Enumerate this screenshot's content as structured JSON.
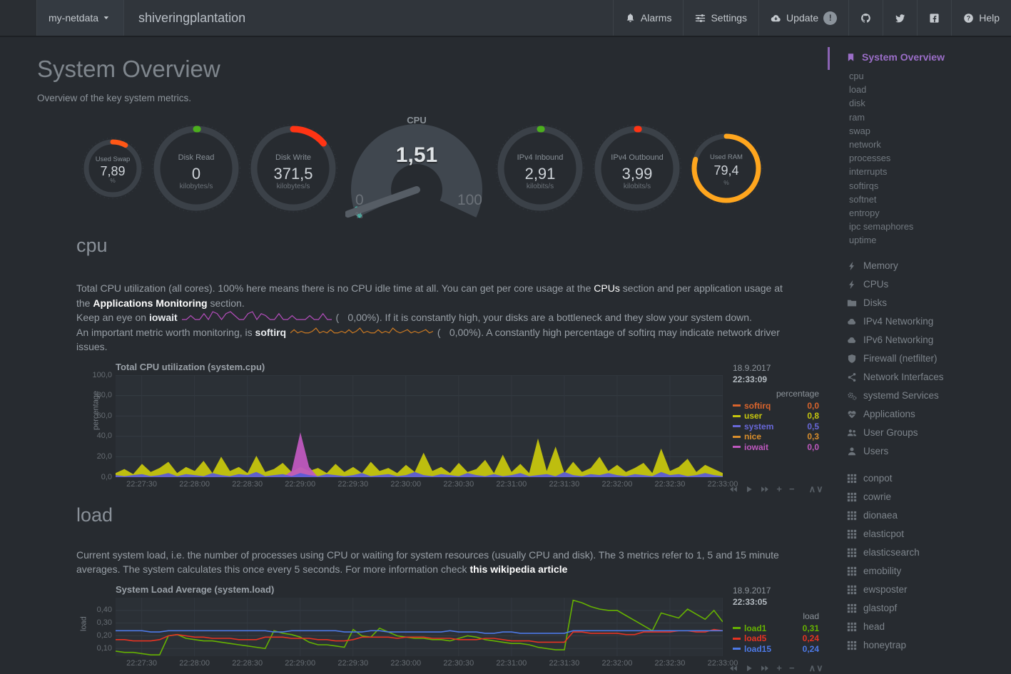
{
  "navbar": {
    "menu_label": "my-netdata",
    "hostname": "shiveringplantation",
    "buttons": [
      {
        "label": "Alarms",
        "icon": "bell-icon"
      },
      {
        "label": "Settings",
        "icon": "sliders-icon"
      },
      {
        "label": "Update",
        "icon": "cloud-download-icon",
        "badge": "!"
      },
      {
        "label": "",
        "icon": "github-icon"
      },
      {
        "label": "",
        "icon": "twitter-icon"
      },
      {
        "label": "",
        "icon": "facebook-icon"
      },
      {
        "label": "Help",
        "icon": "question-icon"
      }
    ]
  },
  "header": {
    "title": "System Overview",
    "subtitle": "Overview of the key system metrics."
  },
  "gauges": [
    {
      "type": "circle",
      "name": "used-swap",
      "label": "Used Swap",
      "value": "7,89",
      "unit": "%",
      "arc_pct": 8,
      "color": "#ff5716",
      "size": 88
    },
    {
      "type": "circle",
      "name": "disk-read",
      "label": "Disk Read",
      "value": "0",
      "unit": "kilobytes/s",
      "arc_pct": 0.1,
      "color": "#4caf1e",
      "size": 126
    },
    {
      "type": "circle",
      "name": "disk-write",
      "label": "Disk Write",
      "value": "371,5",
      "unit": "kilobytes/s",
      "arc_pct": 14,
      "color": "#ff3414",
      "size": 126
    },
    {
      "type": "gauge",
      "name": "cpu",
      "label": "CPU",
      "value": "1,51",
      "unit": "%",
      "min": "0",
      "max": "100",
      "pct": 1.51,
      "color": "#3fc8b4"
    },
    {
      "type": "circle",
      "name": "ipv4-inbound",
      "label": "IPv4 Inbound",
      "value": "2,91",
      "unit": "kilobits/s",
      "arc_pct": 0.1,
      "color": "#4caf1e",
      "size": 126
    },
    {
      "type": "circle",
      "name": "ipv4-outbound",
      "label": "IPv4 Outbound",
      "value": "3,99",
      "unit": "kilobits/s",
      "arc_pct": 0.1,
      "color": "#ff3414",
      "size": 126
    },
    {
      "type": "circle",
      "name": "used-ram",
      "label": "Used RAM",
      "value": "79,4",
      "unit": "%",
      "arc_pct": 79.4,
      "color": "#ffa61e",
      "size": 104
    }
  ],
  "cpu_section": {
    "heading": "cpu",
    "p1_a": "Total CPU utilization (all cores). 100% here means there is no CPU idle time at all. You can get per core usage at the ",
    "p1_link1": "CPUs",
    "p1_b": " section and per application usage at the ",
    "p1_link2": "Applications Monitoring",
    "p1_c": " section.",
    "p2_a": "Keep an eye on ",
    "p2_bold": "iowait",
    "p2_open": "(",
    "p2_value": "0,00%",
    "p2_rest": "). If it is constantly high, your disks are a bottleneck and they slow your system down.",
    "p3_a": "An important metric worth monitoring, is ",
    "p3_bold": "softirq",
    "p3_open": "(",
    "p3_value": "0,00%",
    "p3_rest": "). A constantly high percentage of softirq may indicate network driver issues.",
    "iowait_spark": [
      0,
      0,
      2,
      0,
      0,
      3,
      0,
      4,
      3,
      0,
      3,
      4,
      2,
      0,
      0,
      3,
      4,
      0,
      3,
      2,
      0,
      0,
      3,
      0,
      0,
      2,
      0,
      0,
      0,
      2,
      0,
      0,
      3,
      0,
      0
    ],
    "softirq_spark": [
      1,
      3,
      1,
      2,
      1,
      1,
      2,
      4,
      1,
      2,
      1,
      3,
      1,
      1,
      2,
      1,
      3,
      1,
      2,
      4,
      1,
      2,
      1,
      1,
      3,
      1,
      2,
      1,
      4,
      2,
      1,
      2,
      3,
      1,
      2,
      1,
      2,
      3,
      1,
      2
    ],
    "iowait_color": "#b44dbb",
    "softirq_color": "#cc7a22"
  },
  "load_section": {
    "heading": "load",
    "p1_a": "Current system load, i.e. the number of processes using CPU or waiting for system resources (usually CPU and disk). The 3 metrics refer to 1, 5 and 15 minute averages. The system calculates this once every 5 seconds. For more information check ",
    "p1_link": "this wikipedia article"
  },
  "chart_data": [
    {
      "id": "cpu",
      "type": "area",
      "title": "Total CPU utilization (system.cpu)",
      "ylabel": "percentage",
      "ylim": [
        0,
        100
      ],
      "h": 143,
      "yticks": [
        {
          "label": "100,0",
          "v": 100
        },
        {
          "label": "80,0",
          "v": 80
        },
        {
          "label": "60,0",
          "v": 60
        },
        {
          "label": "40,0",
          "v": 40
        },
        {
          "label": "20,0",
          "v": 20
        },
        {
          "label": "0,0",
          "v": 0
        }
      ],
      "xticks": [
        "22:27:30",
        "22:28:00",
        "22:28:30",
        "22:29:00",
        "22:29:30",
        "22:30:00",
        "22:30:30",
        "22:31:00",
        "22:31:30",
        "22:32:00",
        "22:32:30",
        "22:33:00"
      ],
      "date": "18.9.2017",
      "time": "22:33:09",
      "unit_label": "percentage",
      "legend": [
        {
          "name": "softirq",
          "value": "0,0",
          "color": "#d9642c"
        },
        {
          "name": "user",
          "value": "0,8",
          "color": "#c6c60e"
        },
        {
          "name": "system",
          "value": "0,5",
          "color": "#6868d9"
        },
        {
          "name": "nice",
          "value": "0,3",
          "color": "#d98e2c"
        },
        {
          "name": "iowait",
          "value": "0,0",
          "color": "#bf58bf"
        }
      ],
      "series": [
        {
          "name": "user",
          "color": "#c6c60e",
          "values": [
            4,
            8,
            3,
            13,
            5,
            9,
            15,
            4,
            10,
            6,
            16,
            4,
            20,
            6,
            10,
            4,
            21,
            5,
            8,
            14,
            5,
            10,
            6,
            9,
            4,
            13,
            5,
            10,
            4,
            15,
            6,
            9,
            4,
            12,
            5,
            24,
            6,
            10,
            4,
            14,
            5,
            8,
            17,
            4,
            22,
            5,
            13,
            4,
            38,
            6,
            30,
            4,
            15,
            5,
            9,
            20,
            6,
            12,
            5,
            9,
            14,
            4,
            28,
            6,
            10,
            18,
            5,
            12,
            8,
            4
          ]
        },
        {
          "name": "iowait",
          "color": "#bf58bf",
          "values": [
            0,
            0,
            0,
            0,
            0,
            0,
            0,
            0,
            0,
            0,
            0,
            0,
            0,
            0,
            0,
            0,
            0,
            0,
            0,
            0,
            6,
            44,
            10,
            0,
            0,
            0,
            0,
            0,
            0,
            0,
            0,
            0,
            0,
            0,
            0,
            0,
            0,
            0,
            0,
            0,
            0,
            0,
            0,
            0,
            0,
            0,
            0,
            0,
            0,
            0,
            0,
            0,
            0,
            0,
            0,
            0,
            0,
            0,
            0,
            0,
            0,
            0,
            0,
            0,
            0,
            0,
            0,
            0,
            0,
            0
          ]
        },
        {
          "name": "system",
          "color": "#5b5bd6",
          "values": [
            2,
            1,
            2,
            3,
            1,
            2,
            4,
            1,
            3,
            2,
            1,
            4,
            2,
            1,
            3,
            2,
            5,
            1,
            2,
            3,
            1,
            4,
            2,
            1,
            3,
            2,
            1,
            2,
            4,
            1,
            2,
            3,
            1,
            2,
            5,
            2,
            1,
            3,
            2,
            1,
            4,
            2,
            1,
            3,
            1,
            2,
            4,
            1,
            2,
            3,
            1,
            5,
            2,
            1,
            3,
            2,
            4,
            2,
            1,
            3,
            2,
            1,
            5,
            2,
            3,
            1,
            2,
            4,
            2,
            1
          ]
        }
      ]
    },
    {
      "id": "load",
      "type": "line",
      "title": "System Load Average (system.load)",
      "ylabel": "load",
      "ylim": [
        0.04,
        0.5
      ],
      "h": 82,
      "yticks": [
        {
          "label": "0,40",
          "v": 0.4
        },
        {
          "label": "0,30",
          "v": 0.3
        },
        {
          "label": "0,20",
          "v": 0.2
        },
        {
          "label": "0,10",
          "v": 0.1
        }
      ],
      "xticks": [
        "22:27:30",
        "22:28:00",
        "22:28:30",
        "22:29:00",
        "22:29:30",
        "22:30:00",
        "22:30:30",
        "22:31:00",
        "22:31:30",
        "22:32:00",
        "22:32:30",
        "22:33:00"
      ],
      "date": "18.9.2017",
      "time": "22:33:05",
      "unit_label": "load",
      "legend": [
        {
          "name": "load1",
          "value": "0,31",
          "color": "#66b201"
        },
        {
          "name": "load5",
          "value": "0,24",
          "color": "#e63322"
        },
        {
          "name": "load15",
          "value": "0,24",
          "color": "#4d79e6"
        }
      ],
      "series": [
        {
          "name": "load1",
          "color": "#66b201",
          "values": [
            0.08,
            0.07,
            0.07,
            0.06,
            0.05,
            0.05,
            0.2,
            0.21,
            0.18,
            0.17,
            0.16,
            0.16,
            0.15,
            0.14,
            0.13,
            0.12,
            0.11,
            0.1,
            0.24,
            0.22,
            0.21,
            0.19,
            0.15,
            0.13,
            0.13,
            0.12,
            0.11,
            0.25,
            0.2,
            0.19,
            0.26,
            0.23,
            0.2,
            0.19,
            0.18,
            0.18,
            0.17,
            0.17,
            0.16,
            0.18,
            0.2,
            0.19,
            0.17,
            0.16,
            0.15,
            0.14,
            0.14,
            0.13,
            0.11,
            0.1,
            0.09,
            0.09,
            0.48,
            0.46,
            0.43,
            0.41,
            0.4,
            0.4,
            0.36,
            0.32,
            0.28,
            0.24,
            0.38,
            0.36,
            0.34,
            0.41,
            0.37,
            0.33,
            0.4,
            0.31
          ]
        },
        {
          "name": "load5",
          "color": "#e63322",
          "values": [
            0.17,
            0.17,
            0.16,
            0.16,
            0.16,
            0.17,
            0.2,
            0.21,
            0.2,
            0.19,
            0.19,
            0.18,
            0.18,
            0.18,
            0.17,
            0.17,
            0.17,
            0.19,
            0.19,
            0.19,
            0.18,
            0.18,
            0.18,
            0.17,
            0.17,
            0.16,
            0.16,
            0.17,
            0.19,
            0.19,
            0.19,
            0.19,
            0.18,
            0.19,
            0.19,
            0.19,
            0.18,
            0.18,
            0.18,
            0.17,
            0.17,
            0.17,
            0.18,
            0.18,
            0.17,
            0.16,
            0.16,
            0.16,
            0.15,
            0.15,
            0.15,
            0.15,
            0.23,
            0.23,
            0.22,
            0.22,
            0.22,
            0.22,
            0.21,
            0.21,
            0.23,
            0.23,
            0.23,
            0.23,
            0.24,
            0.24,
            0.23,
            0.23,
            0.25,
            0.24
          ]
        },
        {
          "name": "load15",
          "color": "#4d79e6",
          "values": [
            0.24,
            0.24,
            0.24,
            0.24,
            0.23,
            0.23,
            0.24,
            0.24,
            0.24,
            0.24,
            0.24,
            0.24,
            0.24,
            0.24,
            0.24,
            0.24,
            0.24,
            0.24,
            0.23,
            0.23,
            0.24,
            0.24,
            0.24,
            0.24,
            0.24,
            0.24,
            0.23,
            0.23,
            0.23,
            0.24,
            0.24,
            0.23,
            0.23,
            0.23,
            0.23,
            0.23,
            0.23,
            0.23,
            0.24,
            0.23,
            0.23,
            0.23,
            0.22,
            0.22,
            0.23,
            0.23,
            0.22,
            0.22,
            0.22,
            0.22,
            0.22,
            0.22,
            0.24,
            0.24,
            0.24,
            0.24,
            0.24,
            0.24,
            0.24,
            0.24,
            0.24,
            0.24,
            0.24,
            0.24,
            0.24,
            0.24,
            0.24,
            0.24,
            0.24,
            0.24
          ]
        }
      ]
    }
  ],
  "toolbar": {
    "items": [
      "skip-back-icon",
      "play-icon",
      "skip-forward-icon",
      "plus-icon",
      "minus-icon",
      "resize-icon"
    ]
  },
  "sidebar": {
    "active": {
      "label": "System Overview",
      "icon": "bookmark-icon"
    },
    "sub_items": [
      "cpu",
      "load",
      "disk",
      "ram",
      "swap",
      "network",
      "processes",
      "interrupts",
      "softirqs",
      "softnet",
      "entropy",
      "ipc semaphores",
      "uptime"
    ],
    "icon_items": [
      {
        "label": "Memory",
        "icon": "bolt-icon"
      },
      {
        "label": "CPUs",
        "icon": "bolt-icon"
      },
      {
        "label": "Disks",
        "icon": "folder-icon"
      },
      {
        "label": "IPv4 Networking",
        "icon": "cloud-icon"
      },
      {
        "label": "IPv6 Networking",
        "icon": "cloud-icon"
      },
      {
        "label": "Firewall (netfilter)",
        "icon": "shield-icon"
      },
      {
        "label": "Network Interfaces",
        "icon": "share-icon"
      },
      {
        "label": "systemd Services",
        "icon": "cogs-icon"
      },
      {
        "label": "Applications",
        "icon": "heartbeat-icon"
      },
      {
        "label": "User Groups",
        "icon": "users-icon"
      },
      {
        "label": "Users",
        "icon": "user-icon"
      }
    ],
    "module_items": [
      "conpot",
      "cowrie",
      "dionaea",
      "elasticpot",
      "elasticsearch",
      "emobility",
      "ewsposter",
      "glastopf",
      "head",
      "honeytrap"
    ]
  }
}
